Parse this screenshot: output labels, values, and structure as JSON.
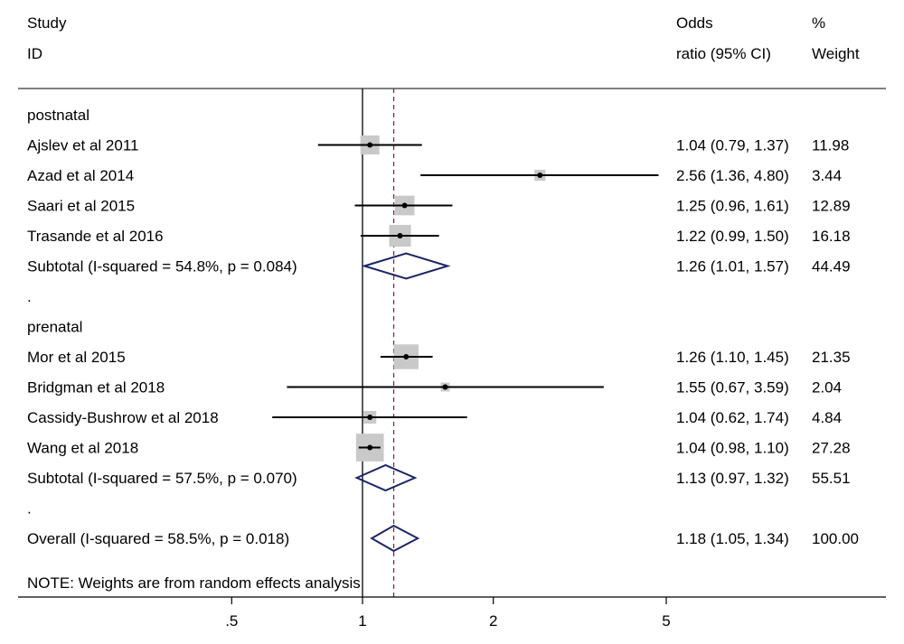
{
  "header": {
    "study": "Study",
    "id": "ID",
    "or_line1": "Odds",
    "or_line2": "ratio (95% CI)",
    "weight_line1": "%",
    "weight_line2": "Weight"
  },
  "note": "NOTE: Weights are from random effects analysis",
  "colors": {
    "diamond": "#1b2566",
    "reference_line": "#8b2a3a",
    "box": "#c9c9c9"
  },
  "chart_data": {
    "type": "forest",
    "scale": "log",
    "x_ticks": [
      {
        "value": 0.5,
        "label": ".5"
      },
      {
        "value": 1,
        "label": "1"
      },
      {
        "value": 2,
        "label": "2"
      },
      {
        "value": 5,
        "label": "5"
      }
    ],
    "null_value": 1,
    "overall_estimate": 1.18,
    "rows": [
      {
        "kind": "group",
        "label": "postnatal"
      },
      {
        "kind": "study",
        "label": "Ajslev et al 2011",
        "or": 1.04,
        "lo": 0.79,
        "hi": 1.37,
        "weight": 11.98,
        "or_text": "1.04 (0.79, 1.37)",
        "weight_text": "11.98"
      },
      {
        "kind": "study",
        "label": "Azad et al 2014",
        "or": 2.56,
        "lo": 1.36,
        "hi": 4.8,
        "weight": 3.44,
        "or_text": "2.56 (1.36, 4.80)",
        "weight_text": "3.44"
      },
      {
        "kind": "study",
        "label": "Saari et al 2015",
        "or": 1.25,
        "lo": 0.96,
        "hi": 1.61,
        "weight": 12.89,
        "or_text": "1.25 (0.96, 1.61)",
        "weight_text": "12.89"
      },
      {
        "kind": "study",
        "label": "Trasande et al 2016",
        "or": 1.22,
        "lo": 0.99,
        "hi": 1.5,
        "weight": 16.18,
        "or_text": "1.22 (0.99, 1.50)",
        "weight_text": "16.18"
      },
      {
        "kind": "subtotal",
        "label": "Subtotal  (I-squared = 54.8%, p = 0.084)",
        "or": 1.26,
        "lo": 1.01,
        "hi": 1.57,
        "weight": 44.49,
        "or_text": "1.26 (1.01, 1.57)",
        "weight_text": "44.49"
      },
      {
        "kind": "spacer",
        "label": "."
      },
      {
        "kind": "group",
        "label": "prenatal"
      },
      {
        "kind": "study",
        "label": "Mor et al 2015",
        "or": 1.26,
        "lo": 1.1,
        "hi": 1.45,
        "weight": 21.35,
        "or_text": "1.26 (1.10, 1.45)",
        "weight_text": "21.35"
      },
      {
        "kind": "study",
        "label": "Bridgman et al 2018",
        "or": 1.55,
        "lo": 0.67,
        "hi": 3.59,
        "weight": 2.04,
        "or_text": "1.55 (0.67, 3.59)",
        "weight_text": "2.04"
      },
      {
        "kind": "study",
        "label": "Cassidy-Bushrow et al 2018",
        "or": 1.04,
        "lo": 0.62,
        "hi": 1.74,
        "weight": 4.84,
        "or_text": "1.04 (0.62, 1.74)",
        "weight_text": "4.84"
      },
      {
        "kind": "study",
        "label": "Wang et al 2018",
        "or": 1.04,
        "lo": 0.98,
        "hi": 1.1,
        "weight": 27.28,
        "or_text": "1.04 (0.98, 1.10)",
        "weight_text": "27.28"
      },
      {
        "kind": "subtotal",
        "label": "Subtotal  (I-squared = 57.5%, p = 0.070)",
        "or": 1.13,
        "lo": 0.97,
        "hi": 1.32,
        "weight": 55.51,
        "or_text": "1.13 (0.97, 1.32)",
        "weight_text": "55.51"
      },
      {
        "kind": "spacer",
        "label": "."
      },
      {
        "kind": "overall",
        "label": "Overall  (I-squared = 58.5%, p = 0.018)",
        "or": 1.18,
        "lo": 1.05,
        "hi": 1.34,
        "weight": 100.0,
        "or_text": "1.18 (1.05, 1.34)",
        "weight_text": "100.00"
      }
    ]
  }
}
